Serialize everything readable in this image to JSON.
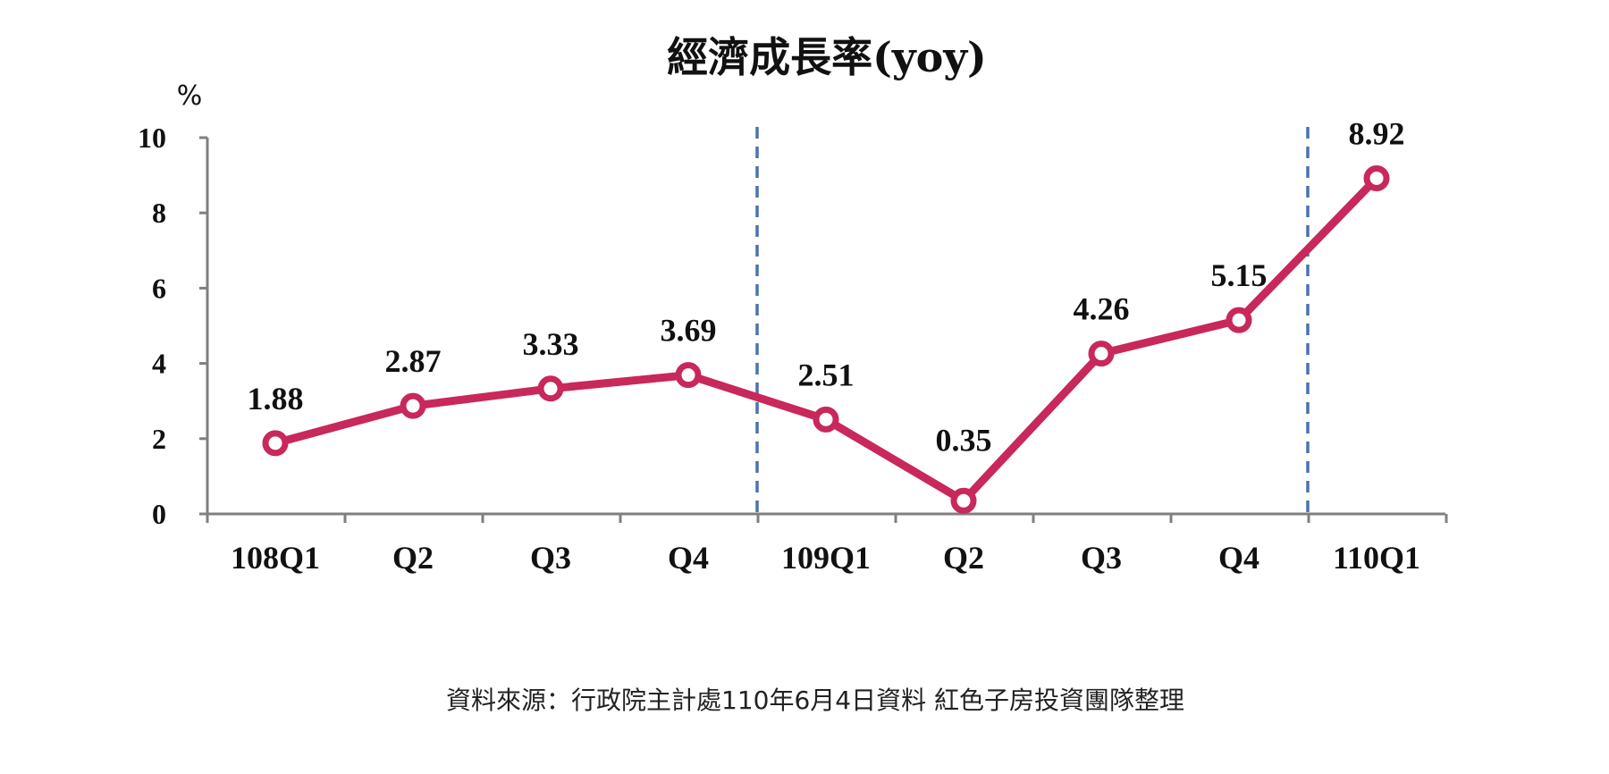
{
  "chart_data": {
    "type": "line",
    "title": "經濟成長率(yoy)",
    "y_unit": "%",
    "categories": [
      "108Q1",
      "Q2",
      "Q3",
      "Q4",
      "109Q1",
      "Q2",
      "Q3",
      "Q4",
      "110Q1"
    ],
    "series": [
      {
        "values": [
          1.88,
          2.87,
          3.33,
          3.69,
          2.51,
          0.35,
          4.26,
          5.15,
          8.92
        ]
      }
    ],
    "data_labels": [
      "1.88",
      "2.87",
      "3.33",
      "3.69",
      "2.51",
      "0.35",
      "4.26",
      "5.15",
      "8.92"
    ],
    "ylim": [
      0,
      10
    ],
    "yticks": [
      "0",
      "2",
      "4",
      "6",
      "8",
      "10"
    ],
    "ytick_values": [
      0,
      2,
      4,
      6,
      8,
      10
    ],
    "grid": false,
    "legend": "none",
    "colors": {
      "line": "#c8285a",
      "marker_fill": "#ffffff",
      "axis": "#7f7f7f",
      "divider": "#4a72b0"
    },
    "source": "資料來源：行政院主計處110年6月4日資料  紅色子房投資團隊整理"
  }
}
